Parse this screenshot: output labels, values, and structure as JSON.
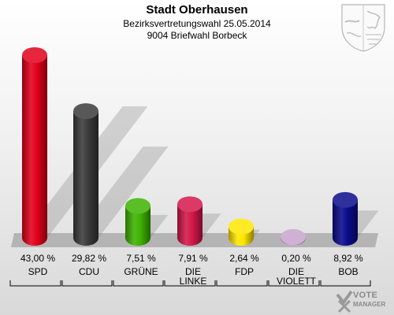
{
  "header": {
    "title": "Stadt Oberhausen",
    "subtitle_1": "Bezirksvertretungswahl 25.05.2014",
    "subtitle_2": "9004 Briefwahl Borbeck"
  },
  "logo": {
    "line1": "VOTE",
    "line2": "MANAGER"
  },
  "crest": {
    "icon": "nrw-coat-of-arms-icon"
  },
  "chart_data": {
    "type": "bar",
    "title": "Stadt Oberhausen",
    "categories": [
      "SPD",
      "CDU",
      "GRÜNE",
      "DIE LINKE",
      "FDP",
      "DIE VIOLETTEN",
      "BOB"
    ],
    "category_labels": [
      [
        "SPD"
      ],
      [
        "CDU"
      ],
      [
        "GRÜNE"
      ],
      [
        "DIE",
        "LINKE"
      ],
      [
        "FDP"
      ],
      [
        "DIE",
        "VIOLETT"
      ],
      [
        "BOB"
      ]
    ],
    "values": [
      43.0,
      29.82,
      7.51,
      7.91,
      2.64,
      0.2,
      8.92
    ],
    "value_labels": [
      "43,00 %",
      "29,82 %",
      "7,51 %",
      "7,91 %",
      "2,64 %",
      "0,20 %",
      "8,92 %"
    ],
    "colors": [
      "#e2001a",
      "#3a3a3a",
      "#3db200",
      "#d3174a",
      "#ffe600",
      "#c8a2cc",
      "#0a0a8c"
    ],
    "ylim": [
      0,
      43
    ],
    "xlabel": "",
    "ylabel": "",
    "grid": false
  }
}
